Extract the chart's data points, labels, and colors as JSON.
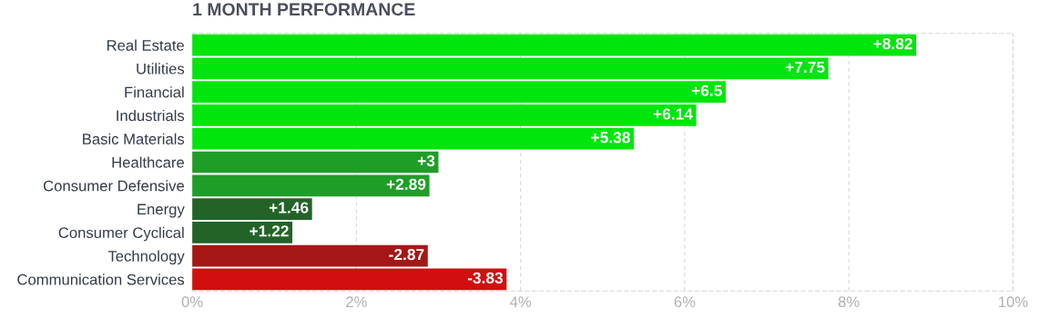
{
  "chart_data": {
    "type": "bar",
    "orientation": "horizontal",
    "title": "1 MONTH PERFORMANCE",
    "categories": [
      "Real Estate",
      "Utilities",
      "Financial",
      "Industrials",
      "Basic Materials",
      "Healthcare",
      "Consumer Defensive",
      "Energy",
      "Consumer Cyclical",
      "Technology",
      "Communication Services"
    ],
    "values": [
      8.82,
      7.75,
      6.5,
      6.14,
      5.38,
      3,
      2.89,
      1.46,
      1.22,
      -2.87,
      -3.83
    ],
    "base": [
      0,
      0,
      0,
      0,
      0,
      0,
      0,
      0,
      0,
      2.87,
      3.83
    ],
    "value_labels": [
      "+8.82",
      "+7.75",
      "+6.5",
      "+6.14",
      "+5.38",
      "+3",
      "+2.89",
      "+1.46",
      "+1.22",
      "-2.87",
      "-3.83"
    ],
    "colors": [
      "#00e60c",
      "#00e60c",
      "#00e60c",
      "#00e60c",
      "#00e60c",
      "#1e9e26",
      "#1e9e26",
      "#236328",
      "#236328",
      "#a51717",
      "#d10f0f"
    ],
    "xlim": [
      0,
      10
    ],
    "xticks": [
      {
        "value": 0,
        "label": "0%"
      },
      {
        "value": 2,
        "label": "2%"
      },
      {
        "value": 4,
        "label": "4%"
      },
      {
        "value": 6,
        "label": "6%"
      },
      {
        "value": 8,
        "label": "8%"
      },
      {
        "value": 10,
        "label": "10%"
      }
    ],
    "grid": "x"
  }
}
